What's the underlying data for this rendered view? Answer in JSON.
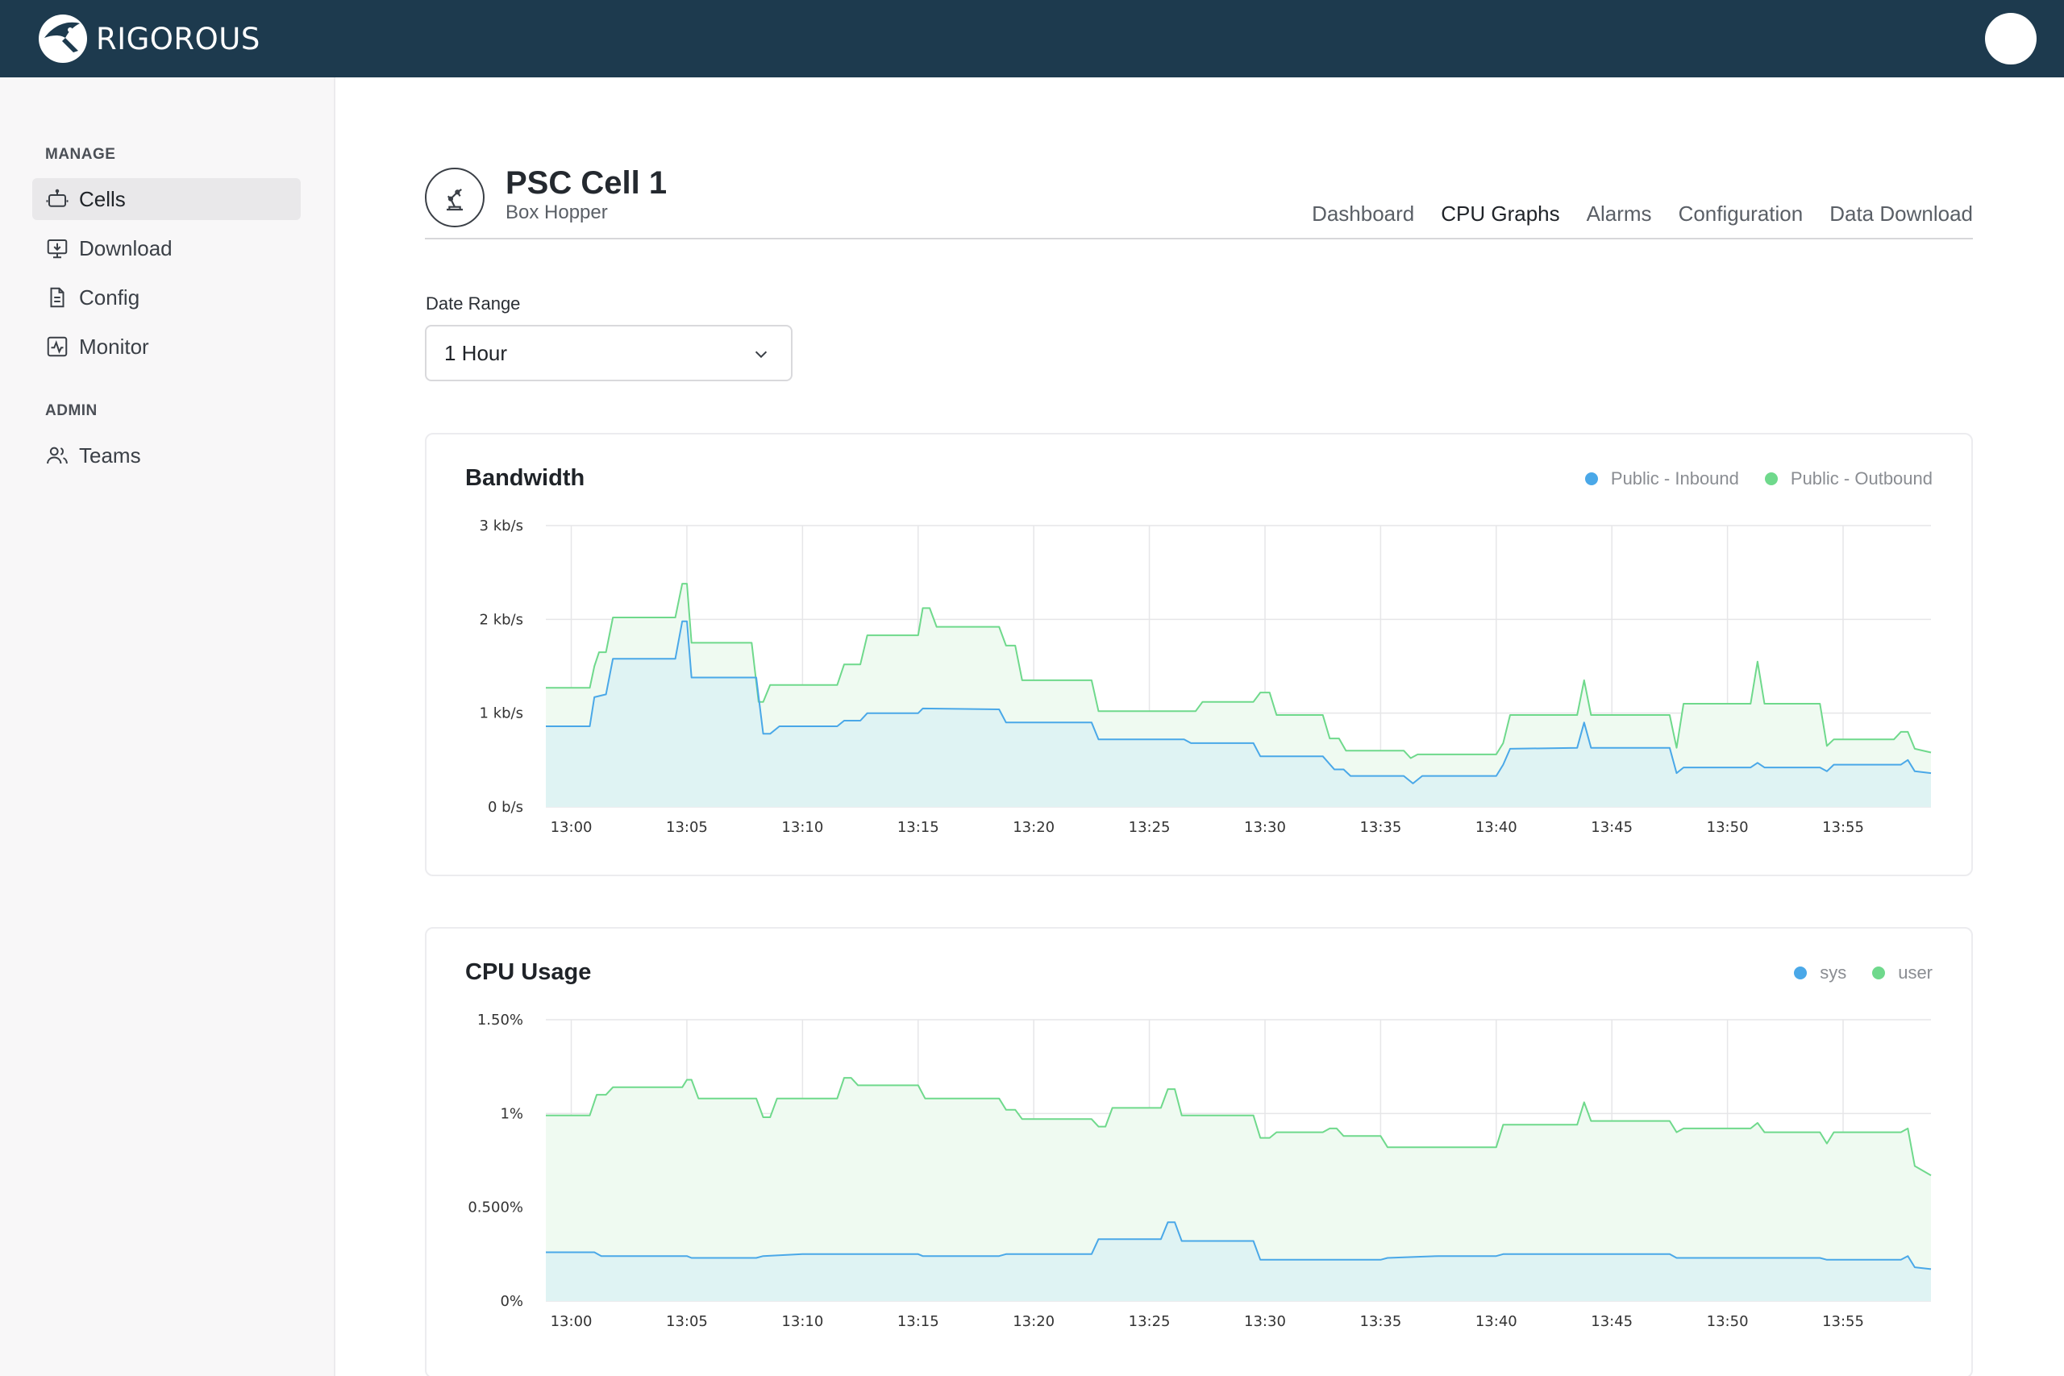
{
  "app": {
    "brand": "RIGOROUS"
  },
  "sidebar": {
    "sections": [
      {
        "title": "MANAGE",
        "items": [
          {
            "label": "Cells",
            "icon": "robot-icon",
            "active": true
          },
          {
            "label": "Download",
            "icon": "download-monitor-icon"
          },
          {
            "label": "Config",
            "icon": "document-icon"
          },
          {
            "label": "Monitor",
            "icon": "activity-icon"
          }
        ]
      },
      {
        "title": "ADMIN",
        "items": [
          {
            "label": "Teams",
            "icon": "users-icon"
          }
        ]
      }
    ]
  },
  "cell": {
    "title": "PSC Cell 1",
    "subtitle": "Box Hopper",
    "icon": "robot-arm-icon"
  },
  "tabs": [
    {
      "label": "Dashboard",
      "active": false
    },
    {
      "label": "CPU Graphs",
      "active": true
    },
    {
      "label": "Alarms",
      "active": false
    },
    {
      "label": "Configuration",
      "active": false
    },
    {
      "label": "Data Download",
      "active": false
    }
  ],
  "date_range": {
    "label": "Date Range",
    "value": "1 Hour"
  },
  "colors": {
    "blue": "#4aa8e8",
    "green": "#6fd98c",
    "blue_fill": "#dff3f3",
    "green_fill": "#effaf1"
  },
  "chart_data": [
    {
      "type": "area",
      "title": "Bandwidth",
      "x_unit": "minutes after 13:00",
      "xticks": [
        "13:00",
        "13:05",
        "13:10",
        "13:15",
        "13:20",
        "13:25",
        "13:30",
        "13:35",
        "13:40",
        "13:45",
        "13:50",
        "13:55"
      ],
      "yticks": [
        "0 b/s",
        "1 kb/s",
        "2 kb/s",
        "3 kb/s"
      ],
      "ylim": [
        0,
        3
      ],
      "xlim": [
        -1.1,
        58.8
      ],
      "grid": true,
      "legend_position": "top-right",
      "series": [
        {
          "name": "Public - Inbound",
          "color": "#4aa8e8",
          "points": [
            [
              -1.1,
              0.86
            ],
            [
              0.8,
              0.86
            ],
            [
              1.0,
              1.17
            ],
            [
              1.5,
              1.2
            ],
            [
              1.8,
              1.58
            ],
            [
              4.5,
              1.58
            ],
            [
              4.8,
              1.98
            ],
            [
              5.0,
              1.98
            ],
            [
              5.2,
              1.38
            ],
            [
              8.0,
              1.38
            ],
            [
              8.3,
              0.78
            ],
            [
              8.6,
              0.78
            ],
            [
              9.0,
              0.86
            ],
            [
              11.5,
              0.86
            ],
            [
              11.8,
              0.92
            ],
            [
              12.5,
              0.92
            ],
            [
              12.8,
              1.0
            ],
            [
              15.0,
              1.0
            ],
            [
              15.2,
              1.05
            ],
            [
              18.5,
              1.04
            ],
            [
              18.8,
              0.9
            ],
            [
              22.5,
              0.9
            ],
            [
              22.8,
              0.72
            ],
            [
              26.5,
              0.72
            ],
            [
              26.8,
              0.68
            ],
            [
              29.5,
              0.68
            ],
            [
              29.8,
              0.54
            ],
            [
              32.5,
              0.54
            ],
            [
              33.0,
              0.4
            ],
            [
              33.4,
              0.4
            ],
            [
              33.7,
              0.33
            ],
            [
              36.0,
              0.33
            ],
            [
              36.4,
              0.25
            ],
            [
              36.8,
              0.33
            ],
            [
              40.0,
              0.33
            ],
            [
              40.3,
              0.45
            ],
            [
              40.6,
              0.62
            ],
            [
              43.5,
              0.63
            ],
            [
              43.8,
              0.9
            ],
            [
              44.1,
              0.63
            ],
            [
              47.5,
              0.63
            ],
            [
              47.8,
              0.36
            ],
            [
              48.1,
              0.42
            ],
            [
              51.0,
              0.42
            ],
            [
              51.3,
              0.47
            ],
            [
              51.6,
              0.42
            ],
            [
              54.0,
              0.42
            ],
            [
              54.3,
              0.38
            ],
            [
              54.6,
              0.45
            ],
            [
              57.5,
              0.45
            ],
            [
              57.8,
              0.5
            ],
            [
              58.1,
              0.38
            ],
            [
              58.8,
              0.36
            ]
          ]
        },
        {
          "name": "Public - Outbound",
          "color": "#6fd98c",
          "points": [
            [
              -1.1,
              1.27
            ],
            [
              0.8,
              1.27
            ],
            [
              1.0,
              1.5
            ],
            [
              1.2,
              1.65
            ],
            [
              1.5,
              1.65
            ],
            [
              1.8,
              2.02
            ],
            [
              4.5,
              2.02
            ],
            [
              4.8,
              2.38
            ],
            [
              5.0,
              2.38
            ],
            [
              5.2,
              1.75
            ],
            [
              7.8,
              1.75
            ],
            [
              8.1,
              1.12
            ],
            [
              8.3,
              1.12
            ],
            [
              8.6,
              1.3
            ],
            [
              11.5,
              1.3
            ],
            [
              11.8,
              1.52
            ],
            [
              12.5,
              1.52
            ],
            [
              12.8,
              1.83
            ],
            [
              15.0,
              1.83
            ],
            [
              15.2,
              2.12
            ],
            [
              15.5,
              2.12
            ],
            [
              15.8,
              1.92
            ],
            [
              18.5,
              1.92
            ],
            [
              18.8,
              1.72
            ],
            [
              19.2,
              1.72
            ],
            [
              19.5,
              1.35
            ],
            [
              22.5,
              1.35
            ],
            [
              22.8,
              1.02
            ],
            [
              27.0,
              1.02
            ],
            [
              27.3,
              1.12
            ],
            [
              29.5,
              1.12
            ],
            [
              29.8,
              1.22
            ],
            [
              30.2,
              1.22
            ],
            [
              30.5,
              0.98
            ],
            [
              32.5,
              0.98
            ],
            [
              32.8,
              0.73
            ],
            [
              33.2,
              0.73
            ],
            [
              33.5,
              0.6
            ],
            [
              36.0,
              0.6
            ],
            [
              36.3,
              0.52
            ],
            [
              36.6,
              0.56
            ],
            [
              40.0,
              0.56
            ],
            [
              40.3,
              0.68
            ],
            [
              40.6,
              0.98
            ],
            [
              43.5,
              0.98
            ],
            [
              43.8,
              1.35
            ],
            [
              44.1,
              0.98
            ],
            [
              47.5,
              0.98
            ],
            [
              47.8,
              0.63
            ],
            [
              48.1,
              1.1
            ],
            [
              51.0,
              1.1
            ],
            [
              51.3,
              1.55
            ],
            [
              51.6,
              1.1
            ],
            [
              54.0,
              1.1
            ],
            [
              54.3,
              0.65
            ],
            [
              54.6,
              0.72
            ],
            [
              57.2,
              0.72
            ],
            [
              57.5,
              0.8
            ],
            [
              57.8,
              0.8
            ],
            [
              58.1,
              0.62
            ],
            [
              58.8,
              0.58
            ]
          ]
        }
      ]
    },
    {
      "type": "area",
      "title": "CPU Usage",
      "x_unit": "minutes after 13:00",
      "xticks": [
        "13:00",
        "13:05",
        "13:10",
        "13:15",
        "13:20",
        "13:25",
        "13:30",
        "13:35",
        "13:40",
        "13:45",
        "13:50",
        "13:55"
      ],
      "yticks": [
        "0%",
        "0.500%",
        "1%",
        "1.50%"
      ],
      "ylim": [
        0,
        1.5
      ],
      "xlim": [
        -1.1,
        58.8
      ],
      "grid": true,
      "legend_position": "top-right",
      "series": [
        {
          "name": "sys",
          "color": "#4aa8e8",
          "points": [
            [
              -1.1,
              0.26
            ],
            [
              1.0,
              0.26
            ],
            [
              1.3,
              0.24
            ],
            [
              5.0,
              0.24
            ],
            [
              5.2,
              0.23
            ],
            [
              8.0,
              0.23
            ],
            [
              8.3,
              0.24
            ],
            [
              10.0,
              0.25
            ],
            [
              15.0,
              0.25
            ],
            [
              15.2,
              0.24
            ],
            [
              18.5,
              0.24
            ],
            [
              18.8,
              0.25
            ],
            [
              22.5,
              0.25
            ],
            [
              22.8,
              0.33
            ],
            [
              25.5,
              0.33
            ],
            [
              25.8,
              0.42
            ],
            [
              26.1,
              0.42
            ],
            [
              26.4,
              0.32
            ],
            [
              29.5,
              0.32
            ],
            [
              29.8,
              0.22
            ],
            [
              35.0,
              0.22
            ],
            [
              35.3,
              0.23
            ],
            [
              37.5,
              0.24
            ],
            [
              40.0,
              0.24
            ],
            [
              40.3,
              0.25
            ],
            [
              47.5,
              0.25
            ],
            [
              47.8,
              0.23
            ],
            [
              54.0,
              0.23
            ],
            [
              54.3,
              0.22
            ],
            [
              57.5,
              0.22
            ],
            [
              57.8,
              0.24
            ],
            [
              58.1,
              0.18
            ],
            [
              58.8,
              0.17
            ]
          ]
        },
        {
          "name": "user",
          "color": "#6fd98c",
          "points": [
            [
              -1.1,
              0.99
            ],
            [
              0.8,
              0.99
            ],
            [
              1.1,
              1.1
            ],
            [
              1.5,
              1.1
            ],
            [
              1.8,
              1.14
            ],
            [
              4.8,
              1.14
            ],
            [
              5.0,
              1.18
            ],
            [
              5.2,
              1.18
            ],
            [
              5.5,
              1.08
            ],
            [
              8.0,
              1.08
            ],
            [
              8.3,
              0.98
            ],
            [
              8.6,
              0.98
            ],
            [
              8.9,
              1.08
            ],
            [
              11.5,
              1.08
            ],
            [
              11.8,
              1.19
            ],
            [
              12.1,
              1.19
            ],
            [
              12.4,
              1.15
            ],
            [
              15.0,
              1.15
            ],
            [
              15.3,
              1.08
            ],
            [
              18.5,
              1.08
            ],
            [
              18.8,
              1.02
            ],
            [
              19.2,
              1.02
            ],
            [
              19.5,
              0.97
            ],
            [
              22.5,
              0.97
            ],
            [
              22.8,
              0.93
            ],
            [
              23.1,
              0.93
            ],
            [
              23.4,
              1.03
            ],
            [
              25.5,
              1.03
            ],
            [
              25.8,
              1.13
            ],
            [
              26.1,
              1.13
            ],
            [
              26.4,
              0.99
            ],
            [
              29.5,
              0.99
            ],
            [
              29.8,
              0.87
            ],
            [
              30.2,
              0.87
            ],
            [
              30.5,
              0.9
            ],
            [
              32.5,
              0.9
            ],
            [
              32.8,
              0.92
            ],
            [
              33.1,
              0.92
            ],
            [
              33.4,
              0.88
            ],
            [
              35.0,
              0.88
            ],
            [
              35.3,
              0.82
            ],
            [
              40.0,
              0.82
            ],
            [
              40.3,
              0.94
            ],
            [
              43.5,
              0.94
            ],
            [
              43.8,
              1.06
            ],
            [
              44.1,
              0.96
            ],
            [
              47.5,
              0.96
            ],
            [
              47.8,
              0.9
            ],
            [
              48.1,
              0.92
            ],
            [
              51.0,
              0.92
            ],
            [
              51.3,
              0.95
            ],
            [
              51.6,
              0.9
            ],
            [
              54.0,
              0.9
            ],
            [
              54.3,
              0.84
            ],
            [
              54.6,
              0.9
            ],
            [
              57.5,
              0.9
            ],
            [
              57.8,
              0.92
            ],
            [
              58.1,
              0.72
            ],
            [
              58.8,
              0.67
            ]
          ]
        }
      ]
    }
  ]
}
